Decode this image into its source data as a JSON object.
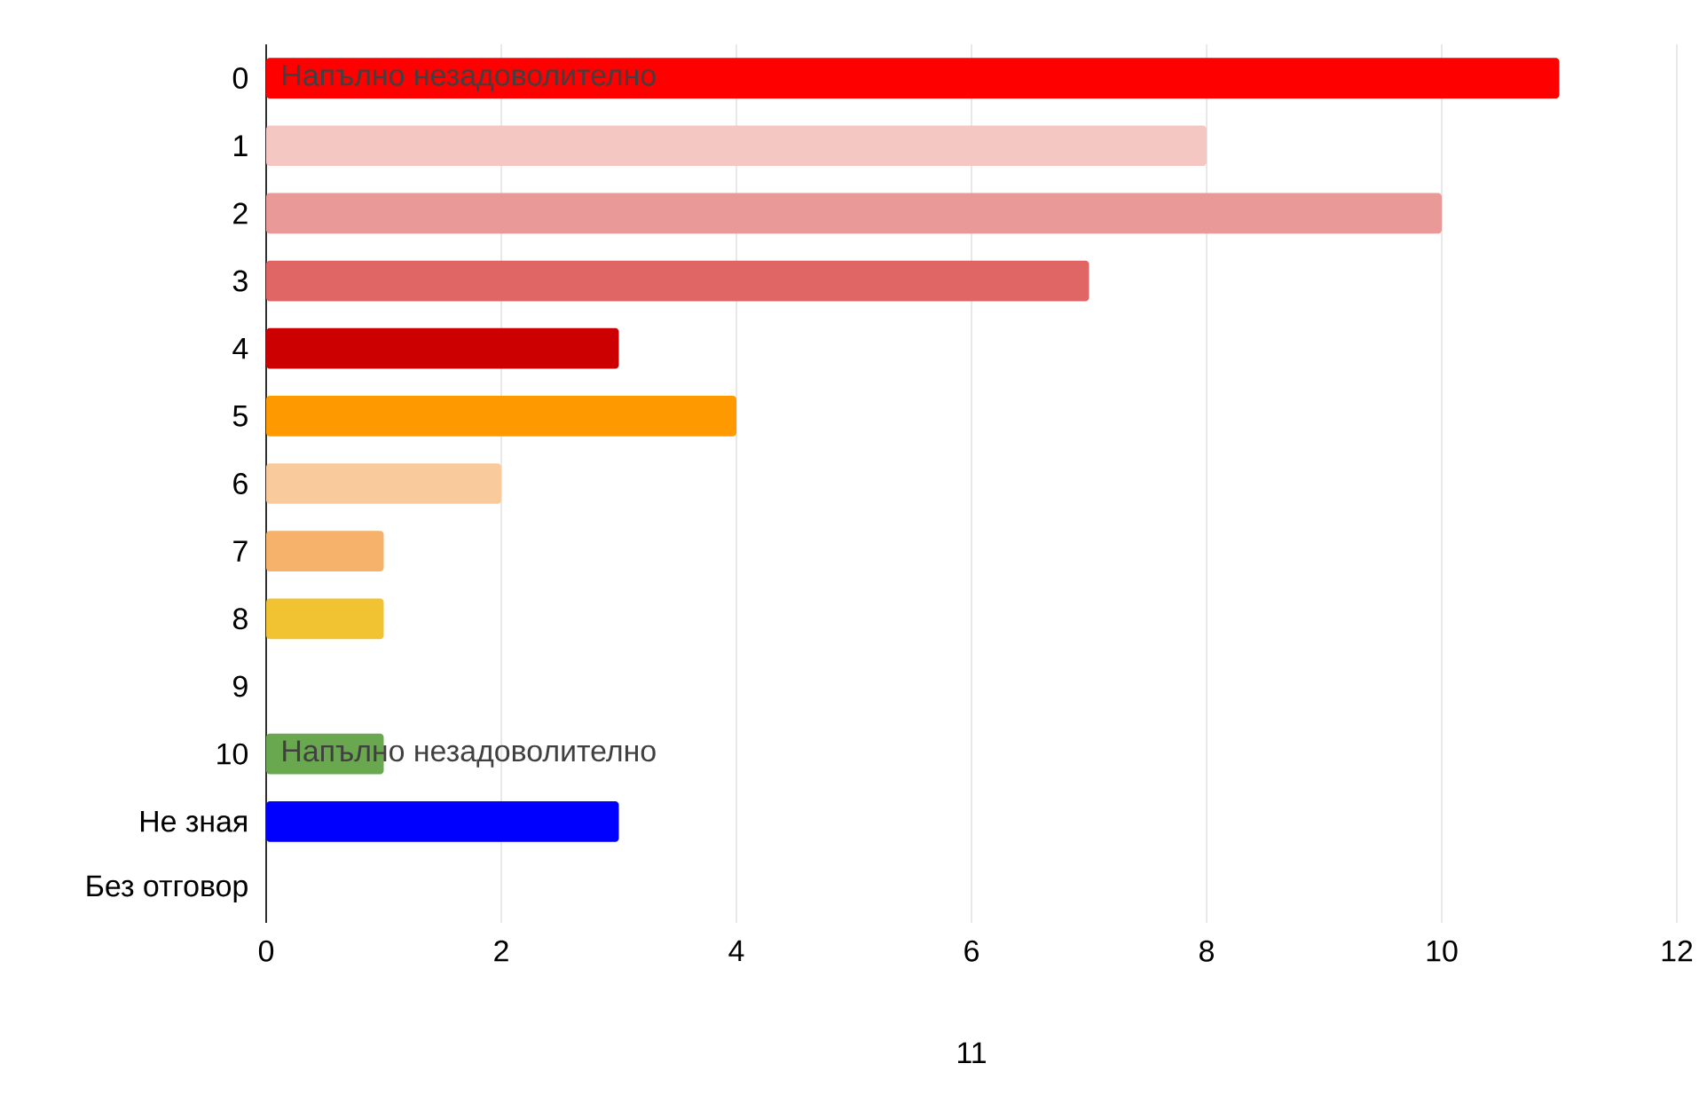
{
  "chart_data": {
    "type": "bar",
    "orientation": "horizontal",
    "xlabel": "11",
    "categories": [
      "0",
      "1",
      "2",
      "3",
      "4",
      "5",
      "6",
      "7",
      "8",
      "9",
      "10",
      "Не зная",
      "Без отговор"
    ],
    "values": [
      11,
      8,
      10,
      7,
      3,
      4,
      2,
      1,
      1,
      0,
      1,
      3,
      0
    ],
    "colors": [
      "#ff0000",
      "#f4c7c3",
      "#ea9999",
      "#e06666",
      "#cc0000",
      "#ff9900",
      "#f9cb9c",
      "#f6b26b",
      "#f1c232",
      "#ffd966",
      "#6aa84f",
      "#0000ff",
      "#999999"
    ],
    "xlim": [
      0,
      12
    ],
    "xticks": [
      0,
      2,
      4,
      6,
      8,
      10,
      12
    ],
    "grid": "x",
    "annotations": [
      {
        "text": "Напълно незадоволително",
        "x": 0,
        "y": "0"
      },
      {
        "text": "Напълно незадоволително",
        "x": 0,
        "y": "10"
      }
    ]
  }
}
